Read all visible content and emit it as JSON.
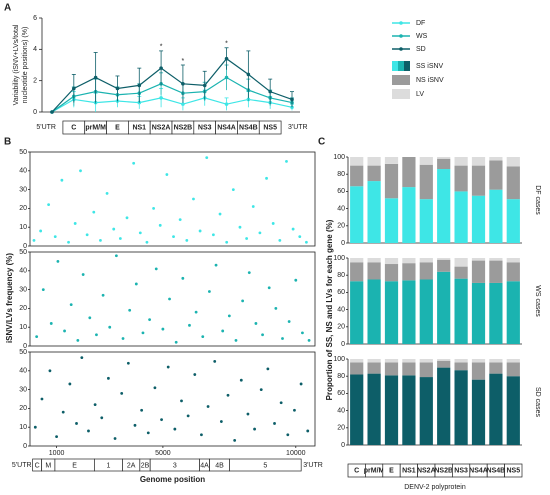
{
  "chart_data": [
    {
      "type": "line",
      "panel": "A",
      "ylabel": [
        "Variability (iSNV+LVs/total",
        "nucleotide positions) (%)"
      ],
      "categories": [
        "5'UTR",
        "C",
        "prM/M",
        "E",
        "NS1",
        "NS2A",
        "NS2B",
        "NS3",
        "NS4A",
        "NS4B",
        "NS5",
        "3'UTR"
      ],
      "ylim": [
        0,
        6
      ],
      "yticks": [
        0,
        2,
        4,
        6
      ],
      "series": [
        {
          "name": "DF",
          "color": "#3ee6e6",
          "values": [
            0,
            0.8,
            0.6,
            0.7,
            0.6,
            0.9,
            0.5,
            0.9,
            0.5,
            0.8,
            0.6,
            0.3
          ],
          "errors": [
            0,
            0.5,
            0.6,
            0.4,
            0.4,
            0.6,
            0.4,
            0.5,
            0.4,
            0.5,
            0.4,
            0.2
          ]
        },
        {
          "name": "WS",
          "color": "#1bb3b0",
          "values": [
            0,
            1.0,
            1.3,
            1.1,
            1.2,
            1.8,
            1.2,
            1.3,
            2.2,
            1.4,
            0.9,
            0.6
          ],
          "errors": [
            0,
            0.6,
            0.8,
            0.5,
            0.6,
            0.7,
            0.6,
            0.6,
            0.8,
            0.7,
            0.5,
            0.3
          ]
        },
        {
          "name": "SD",
          "color": "#0d5e68",
          "values": [
            0,
            1.5,
            2.2,
            1.5,
            1.7,
            2.8,
            1.8,
            1.7,
            3.4,
            2.4,
            1.3,
            0.8
          ],
          "errors": [
            0,
            0.9,
            1.6,
            0.8,
            1.1,
            1.1,
            1.2,
            0.9,
            0.7,
            1.5,
            0.8,
            0.5
          ]
        }
      ],
      "annotations": [
        {
          "text": "*",
          "category": 5
        },
        {
          "text": "*",
          "category": 6
        },
        {
          "text": "*",
          "category": 8
        }
      ]
    },
    {
      "type": "scatter",
      "panel": "B",
      "ylabel": "iSNV/LVs frequency (%)",
      "xlabel": "Genome position",
      "xlim": [
        0,
        10723
      ],
      "xticks": [
        1000,
        5000,
        10000
      ],
      "ylim": [
        0,
        50
      ],
      "yticks": [
        0,
        10,
        20,
        30,
        40,
        50
      ],
      "genome": [
        {
          "label": "5'UTR",
          "start": 0,
          "end": 96
        },
        {
          "label": "C",
          "start": 97,
          "end": 438
        },
        {
          "label": "M",
          "start": 439,
          "end": 936
        },
        {
          "label": "E",
          "start": 937,
          "end": 2421
        },
        {
          "label": "1",
          "start": 2422,
          "end": 3477
        },
        {
          "label": "2A",
          "start": 3478,
          "end": 4131
        },
        {
          "label": "2B",
          "start": 4132,
          "end": 4521
        },
        {
          "label": "3",
          "start": 4522,
          "end": 6375
        },
        {
          "label": "4A",
          "start": 6376,
          "end": 6756
        },
        {
          "label": "4B",
          "start": 6757,
          "end": 7503
        },
        {
          "label": "5",
          "start": 7504,
          "end": 10203
        },
        {
          "label": "3'UTR",
          "start": 10204,
          "end": 10723
        }
      ],
      "series": [
        {
          "name": "DF",
          "color": "#3ee6e6",
          "x": [
            150,
            400,
            700,
            950,
            1200,
            1450,
            1700,
            1900,
            2150,
            2400,
            2650,
            2900,
            3150,
            3400,
            3650,
            3900,
            4150,
            4400,
            4650,
            4900,
            5150,
            5400,
            5650,
            5900,
            6150,
            6400,
            6650,
            6900,
            7150,
            7400,
            7650,
            7900,
            8150,
            8400,
            8650,
            8900,
            9150,
            9400,
            9650,
            9900,
            10150,
            10400
          ],
          "y": [
            3,
            8,
            22,
            5,
            35,
            2,
            12,
            40,
            6,
            18,
            3,
            28,
            9,
            4,
            15,
            44,
            7,
            2,
            20,
            11,
            38,
            5,
            14,
            3,
            25,
            8,
            47,
            6,
            17,
            2,
            30,
            10,
            4,
            21,
            7,
            36,
            12,
            3,
            45,
            9,
            5,
            2
          ]
        },
        {
          "name": "WS",
          "color": "#1bb3b0",
          "x": [
            250,
            500,
            800,
            1050,
            1300,
            1550,
            1800,
            2000,
            2250,
            2500,
            2750,
            3000,
            3250,
            3500,
            3750,
            4000,
            4250,
            4500,
            4750,
            5000,
            5250,
            5500,
            5750,
            6000,
            6250,
            6500,
            6750,
            7000,
            7250,
            7500,
            7750,
            8000,
            8250,
            8500,
            8750,
            9000,
            9250,
            9500,
            9750,
            10000,
            10250,
            10500
          ],
          "y": [
            5,
            30,
            12,
            45,
            8,
            22,
            3,
            38,
            15,
            6,
            27,
            10,
            48,
            4,
            19,
            33,
            7,
            14,
            41,
            9,
            25,
            2,
            36,
            11,
            18,
            5,
            29,
            43,
            8,
            16,
            3,
            24,
            39,
            12,
            6,
            31,
            20,
            4,
            13,
            35,
            7,
            3
          ]
        },
        {
          "name": "SD",
          "color": "#0d5e68",
          "x": [
            200,
            450,
            750,
            1000,
            1250,
            1500,
            1750,
            1950,
            2200,
            2450,
            2700,
            2950,
            3200,
            3450,
            3700,
            3950,
            4200,
            4450,
            4700,
            4950,
            5200,
            5450,
            5700,
            5950,
            6200,
            6450,
            6700,
            6950,
            7200,
            7450,
            7700,
            7950,
            8200,
            8450,
            8700,
            8950,
            9200,
            9450,
            9700,
            9950,
            10200,
            10450
          ],
          "y": [
            10,
            25,
            40,
            5,
            18,
            33,
            12,
            47,
            8,
            22,
            15,
            36,
            4,
            28,
            44,
            11,
            19,
            7,
            31,
            14,
            42,
            9,
            24,
            16,
            38,
            6,
            21,
            45,
            13,
            27,
            3,
            35,
            17,
            9,
            30,
            41,
            12,
            23,
            6,
            19,
            33,
            8
          ]
        }
      ]
    },
    {
      "type": "stacked-bar",
      "panel": "C",
      "ylabel": "Proportion of SS, NS and LVs for each gene (%)",
      "xlabel": "DENV-2 polyprotein",
      "categories": [
        "C",
        "prM/M",
        "E",
        "NS1",
        "NS2A",
        "NS2B",
        "NS3",
        "NS4A",
        "NS4B",
        "NS5"
      ],
      "ylim": [
        0,
        100
      ],
      "yticks": [
        0,
        20,
        40,
        60,
        80,
        100
      ],
      "legend": [
        {
          "name": "SS iSNV",
          "colors": [
            "#3ee6e6",
            "#1bb3b0",
            "#0d5e68"
          ]
        },
        {
          "name": "NS iSNV",
          "color": "#9b9b9b"
        },
        {
          "name": "LV",
          "color": "#dcdcdc"
        }
      ],
      "panels": [
        {
          "label": "DF cases",
          "color": "#3ee6e6",
          "series": [
            [
              66,
              72,
              52,
              65,
              51,
              86,
              60,
              55,
              62,
              51
            ],
            [
              24,
              18,
              40,
              35,
              40,
              12,
              30,
              35,
              34,
              38
            ],
            [
              10,
              10,
              8,
              0,
              9,
              2,
              10,
              10,
              4,
              11
            ]
          ]
        },
        {
          "label": "WS cases",
          "color": "#1bb3b0",
          "series": [
            [
              73,
              75,
              73,
              74,
              75,
              84,
              76,
              71,
              71,
              73
            ],
            [
              22,
              20,
              20,
              20,
              20,
              14,
              14,
              26,
              26,
              22
            ],
            [
              5,
              5,
              7,
              6,
              5,
              2,
              10,
              3,
              3,
              5
            ]
          ]
        },
        {
          "label": "SD cases",
          "color": "#0d5e68",
          "series": [
            [
              82,
              83,
              81,
              81,
              79,
              90,
              87,
              76,
              83,
              80
            ],
            [
              14,
              13,
              15,
              15,
              17,
              8,
              9,
              20,
              13,
              16
            ],
            [
              4,
              4,
              4,
              4,
              4,
              2,
              4,
              4,
              4,
              4
            ]
          ]
        }
      ]
    }
  ]
}
